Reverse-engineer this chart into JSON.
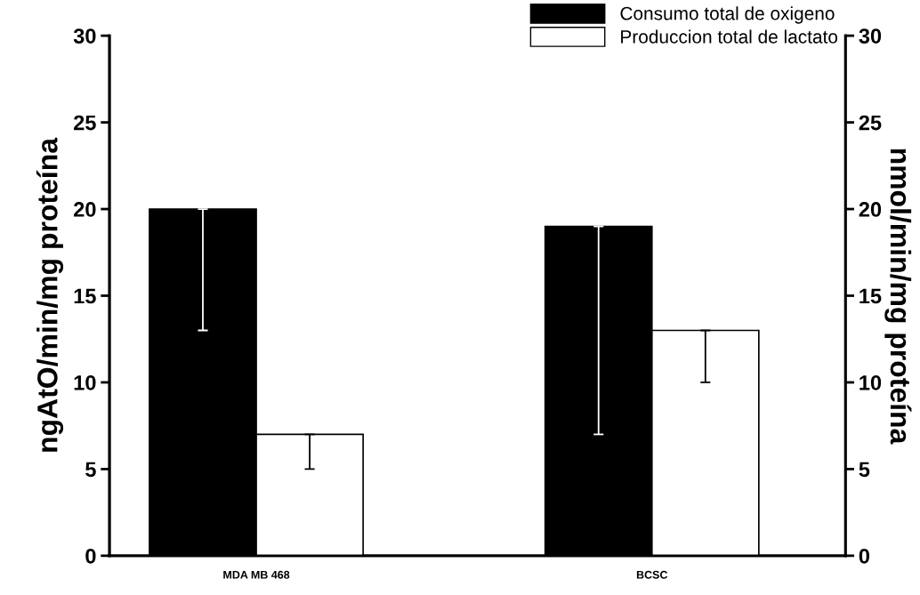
{
  "chart_data": {
    "type": "bar",
    "categories": [
      "MDA MB 468",
      "BCSC"
    ],
    "series": [
      {
        "name": "Consumo total de oxigeno",
        "color": "#000000",
        "values": [
          20,
          19
        ],
        "errors": [
          [
            13,
            20
          ],
          [
            7,
            19
          ]
        ]
      },
      {
        "name": "Produccion total de lactato",
        "color": "#ffffff",
        "values": [
          7,
          13
        ],
        "errors": [
          [
            5,
            7
          ],
          [
            10,
            13
          ]
        ],
        "axis": "y2"
      }
    ],
    "ylabel": "ngAtO/min/mg proteína",
    "y2label": "nmol/min/mg proteína",
    "ylim": [
      0,
      30
    ],
    "yticks": [
      0,
      5,
      10,
      15,
      20,
      25,
      30
    ],
    "y2lim": [
      0,
      30
    ],
    "y2ticks": [
      0,
      5,
      10,
      15,
      20,
      25,
      30
    ],
    "grid": false,
    "legend": "top right"
  }
}
